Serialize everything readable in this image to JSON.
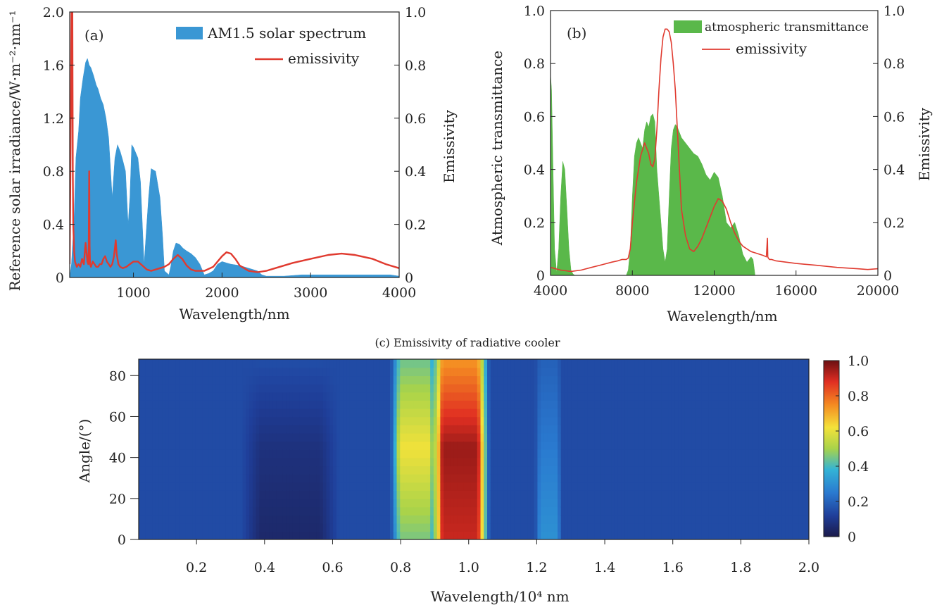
{
  "chart_data": [
    {
      "id": "a",
      "type": "area",
      "panel_label": "(a)",
      "xlabel": "Wavelength/nm",
      "ylabel_left": "Reference solar irradiance/W·m⁻²·nm⁻¹",
      "ylabel_right": "Emissivity",
      "xlim": [
        280,
        4000
      ],
      "ylim_left": [
        0,
        2.0
      ],
      "ylim_right": [
        0,
        1.0
      ],
      "x_ticks": [
        1000,
        2000,
        3000,
        4000
      ],
      "x_tick_labels": [
        "1000",
        "2000",
        "3000",
        "4000"
      ],
      "y_left_ticks": [
        0,
        0.4,
        0.8,
        1.2,
        1.6,
        2.0
      ],
      "y_left_tick_labels": [
        "0",
        "0.4",
        "0.8",
        "1.2",
        "1.6",
        "2.0"
      ],
      "y_right_ticks": [
        0,
        0.2,
        0.4,
        0.6,
        0.8,
        1.0
      ],
      "y_right_tick_labels": [
        "0",
        "0.2",
        "0.4",
        "0.6",
        "0.8",
        "1.0"
      ],
      "legend_position": "top-right",
      "series": [
        {
          "name": "AM1.5 solar spectrum",
          "kind": "area",
          "axis": "left",
          "color": "#3a97d4",
          "x": [
            280,
            300,
            330,
            350,
            380,
            400,
            430,
            460,
            480,
            500,
            520,
            550,
            580,
            600,
            630,
            660,
            690,
            720,
            760,
            790,
            820,
            850,
            880,
            910,
            940,
            960,
            980,
            1000,
            1050,
            1080,
            1100,
            1120,
            1140,
            1170,
            1200,
            1250,
            1300,
            1330,
            1350,
            1400,
            1420,
            1450,
            1480,
            1520,
            1560,
            1600,
            1650,
            1700,
            1750,
            1800,
            1850,
            1900,
            1950,
            2000,
            2050,
            2100,
            2200,
            2300,
            2400,
            2450,
            2500,
            2600,
            2700,
            2900,
            3100,
            3300,
            3500,
            3700,
            3900,
            4000
          ],
          "y": [
            0,
            0.1,
            0.45,
            0.9,
            1.1,
            1.35,
            1.5,
            1.62,
            1.65,
            1.6,
            1.58,
            1.52,
            1.45,
            1.42,
            1.35,
            1.3,
            1.2,
            1.05,
            0.6,
            0.9,
            1.0,
            0.95,
            0.88,
            0.8,
            0.4,
            0.6,
            1.0,
            0.98,
            0.9,
            0.72,
            0.4,
            0.1,
            0.3,
            0.6,
            0.82,
            0.8,
            0.6,
            0.3,
            0.05,
            0.02,
            0.08,
            0.2,
            0.26,
            0.25,
            0.22,
            0.2,
            0.18,
            0.15,
            0.1,
            0.02,
            0.03,
            0.05,
            0.1,
            0.12,
            0.11,
            0.1,
            0.09,
            0.07,
            0.05,
            0.02,
            0.01,
            0.01,
            0.01,
            0.02,
            0.02,
            0.02,
            0.02,
            0.02,
            0.02,
            0.01
          ]
        },
        {
          "name": "emissivity",
          "kind": "line",
          "axis": "right",
          "color": "#e03a2f",
          "x": [
            280,
            290,
            300,
            305,
            310,
            315,
            320,
            330,
            340,
            360,
            380,
            400,
            420,
            440,
            460,
            480,
            490,
            495,
            500,
            505,
            510,
            520,
            540,
            560,
            580,
            600,
            620,
            640,
            660,
            680,
            700,
            720,
            740,
            760,
            780,
            790,
            800,
            810,
            830,
            850,
            880,
            920,
            960,
            1000,
            1050,
            1100,
            1150,
            1200,
            1250,
            1300,
            1350,
            1400,
            1450,
            1500,
            1550,
            1600,
            1650,
            1700,
            1800,
            1900,
            2000,
            2050,
            2100,
            2150,
            2200,
            2300,
            2400,
            2500,
            2600,
            2800,
            3000,
            3200,
            3350,
            3500,
            3700,
            3850,
            4000
          ],
          "y": [
            0.05,
            0.5,
            1.0,
            0.6,
            1.0,
            0.4,
            0.2,
            0.1,
            0.06,
            0.04,
            0.05,
            0.04,
            0.07,
            0.05,
            0.13,
            0.06,
            0.05,
            0.1,
            0.4,
            0.12,
            0.05,
            0.04,
            0.06,
            0.05,
            0.04,
            0.04,
            0.05,
            0.05,
            0.07,
            0.08,
            0.06,
            0.05,
            0.04,
            0.05,
            0.08,
            0.11,
            0.14,
            0.09,
            0.05,
            0.04,
            0.035,
            0.04,
            0.05,
            0.06,
            0.06,
            0.045,
            0.03,
            0.025,
            0.03,
            0.035,
            0.04,
            0.05,
            0.07,
            0.085,
            0.07,
            0.045,
            0.03,
            0.025,
            0.025,
            0.04,
            0.08,
            0.095,
            0.09,
            0.07,
            0.045,
            0.025,
            0.02,
            0.025,
            0.035,
            0.055,
            0.07,
            0.085,
            0.09,
            0.085,
            0.07,
            0.05,
            0.035
          ]
        }
      ]
    },
    {
      "id": "b",
      "type": "area",
      "panel_label": "(b)",
      "xlabel": "Wavelength/nm",
      "ylabel_left": "Atmospheric transmittance",
      "ylabel_right": "Emissivity",
      "xlim": [
        4000,
        20000
      ],
      "ylim_left": [
        0,
        1.0
      ],
      "ylim_right": [
        0,
        1.0
      ],
      "x_ticks": [
        4000,
        8000,
        12000,
        16000,
        20000
      ],
      "x_tick_labels": [
        "4000",
        "8000",
        "12000",
        "16000",
        "20000"
      ],
      "y_left_ticks": [
        0,
        0.2,
        0.4,
        0.6,
        0.8,
        1.0
      ],
      "y_left_tick_labels": [
        "0",
        "0.2",
        "0.4",
        "0.6",
        "0.8",
        "1.0"
      ],
      "y_right_ticks": [
        0,
        0.2,
        0.4,
        0.6,
        0.8,
        1.0
      ],
      "y_right_tick_labels": [
        "0",
        "0.2",
        "0.4",
        "0.6",
        "0.8",
        "1.0"
      ],
      "legend_position": "top-right",
      "series": [
        {
          "name": "atmospheric transmittance",
          "kind": "area",
          "axis": "left",
          "color": "#5ab84a",
          "x": [
            4000,
            4050,
            4100,
            4200,
            4300,
            4400,
            4500,
            4600,
            4700,
            4800,
            4900,
            5000,
            5100,
            5200,
            7700,
            7800,
            7900,
            8000,
            8100,
            8200,
            8300,
            8400,
            8500,
            8600,
            8700,
            8800,
            8900,
            9000,
            9100,
            9200,
            9300,
            9400,
            9500,
            9600,
            9700,
            9800,
            9900,
            10000,
            10100,
            10200,
            10400,
            10600,
            10800,
            11000,
            11200,
            11400,
            11600,
            11800,
            12000,
            12200,
            12400,
            12500,
            12600,
            12800,
            13000,
            13200,
            13400,
            13600,
            13800,
            13900,
            14000
          ],
          "y": [
            0.76,
            0.7,
            0.5,
            0.1,
            0.01,
            0.1,
            0.3,
            0.43,
            0.4,
            0.25,
            0.1,
            0.02,
            0.005,
            0,
            0,
            0.02,
            0.1,
            0.3,
            0.45,
            0.5,
            0.52,
            0.5,
            0.48,
            0.55,
            0.58,
            0.56,
            0.6,
            0.61,
            0.58,
            0.4,
            0.3,
            0.2,
            0.1,
            0.05,
            0.1,
            0.3,
            0.48,
            0.55,
            0.57,
            0.56,
            0.52,
            0.5,
            0.48,
            0.46,
            0.45,
            0.42,
            0.38,
            0.36,
            0.39,
            0.37,
            0.3,
            0.25,
            0.2,
            0.18,
            0.2,
            0.15,
            0.08,
            0.05,
            0.07,
            0.06,
            0
          ]
        },
        {
          "name": "emissivity",
          "kind": "line",
          "axis": "right",
          "color": "#e03a2f",
          "x": [
            4000,
            4500,
            5000,
            5500,
            6000,
            6500,
            7000,
            7300,
            7500,
            7700,
            7800,
            7900,
            8000,
            8200,
            8400,
            8600,
            8800,
            8900,
            9000,
            9100,
            9200,
            9300,
            9400,
            9500,
            9600,
            9700,
            9800,
            9900,
            10000,
            10100,
            10200,
            10300,
            10400,
            10600,
            10800,
            11000,
            11200,
            11400,
            11600,
            11800,
            12000,
            12200,
            12400,
            12600,
            12800,
            13000,
            13200,
            13400,
            13600,
            13800,
            14000,
            14200,
            14400,
            14550,
            14600,
            14620,
            14650,
            14700,
            14800,
            15000,
            16000,
            17000,
            18000,
            19000,
            19500,
            20000
          ],
          "y": [
            0.03,
            0.02,
            0.015,
            0.02,
            0.03,
            0.04,
            0.05,
            0.055,
            0.06,
            0.06,
            0.065,
            0.1,
            0.2,
            0.35,
            0.45,
            0.5,
            0.46,
            0.42,
            0.41,
            0.44,
            0.55,
            0.7,
            0.82,
            0.9,
            0.93,
            0.93,
            0.92,
            0.88,
            0.8,
            0.7,
            0.55,
            0.4,
            0.25,
            0.15,
            0.1,
            0.09,
            0.11,
            0.14,
            0.18,
            0.22,
            0.26,
            0.29,
            0.28,
            0.25,
            0.2,
            0.16,
            0.13,
            0.11,
            0.1,
            0.09,
            0.085,
            0.08,
            0.075,
            0.07,
            0.14,
            0.07,
            0.065,
            0.06,
            0.06,
            0.055,
            0.045,
            0.038,
            0.03,
            0.025,
            0.022,
            0.025
          ]
        }
      ]
    },
    {
      "id": "c",
      "type": "heatmap",
      "title": "(c) Emissivity of radiative cooler",
      "xlabel": "Wavelength/10⁴ nm",
      "ylabel": "Angle/(°)",
      "xlim": [
        0.03,
        2.0
      ],
      "ylim": [
        0,
        88
      ],
      "x_ticks": [
        0.2,
        0.4,
        0.6,
        0.8,
        1.0,
        1.2,
        1.4,
        1.6,
        1.8,
        2.0
      ],
      "x_tick_labels": [
        "0.2",
        "0.4",
        "0.6",
        "0.8",
        "1.0",
        "1.2",
        "1.4",
        "1.6",
        "1.8",
        "2.0"
      ],
      "y_ticks": [
        0,
        20,
        40,
        60,
        80
      ],
      "y_tick_labels": [
        "0",
        "20",
        "40",
        "60",
        "80"
      ],
      "colorbar_range": [
        0,
        1.0
      ],
      "colorbar_ticks": [
        0,
        0.2,
        0.4,
        0.6,
        0.8,
        1.0
      ],
      "colorbar_tick_labels": [
        "0",
        "0.2",
        "0.4",
        "0.6",
        "0.8",
        "1.0"
      ],
      "colormap": [
        "#1c1a4a",
        "#1f3f9a",
        "#2a7ad0",
        "#33b3d6",
        "#a8d34a",
        "#f4e23a",
        "#f48a22",
        "#e02e22",
        "#6b0f12"
      ],
      "features": [
        {
          "x_range": [
            0.78,
            0.9
          ],
          "value_at_0deg": 0.45,
          "value_at_45deg": 0.62,
          "value_at_85deg": 0.45
        },
        {
          "x_range": [
            0.9,
            1.05
          ],
          "value_at_0deg": 0.9,
          "value_at_45deg": 0.95,
          "value_at_85deg": 0.75
        },
        {
          "x_range": [
            1.2,
            1.27
          ],
          "value_at_0deg": 0.3,
          "value_at_45deg": 0.25,
          "value_at_85deg": 0.2
        },
        {
          "x_range": [
            0.35,
            0.6
          ],
          "value_at_0deg": 0.05,
          "value_at_45deg": 0.08,
          "value_at_85deg": 0.15
        }
      ],
      "background_value": 0.15
    }
  ]
}
